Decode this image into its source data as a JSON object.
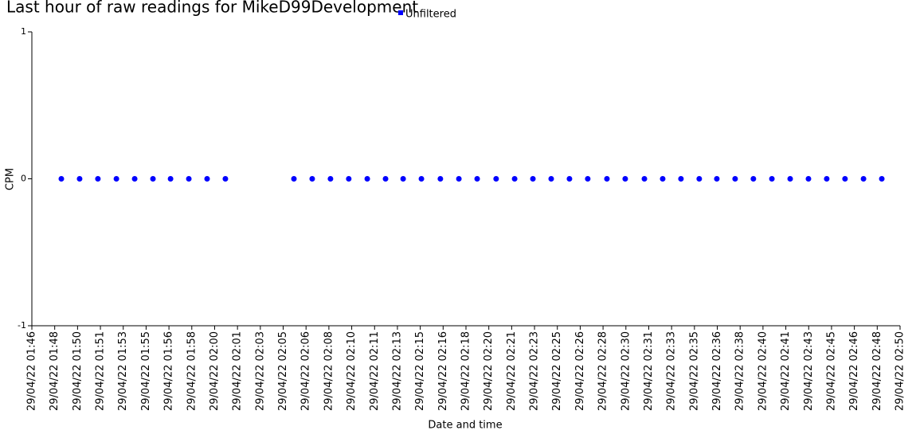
{
  "chart_data": {
    "type": "scatter",
    "title": "Last hour of raw readings for MikeD99Development",
    "x_label": "Date and time",
    "y_label": "CPM",
    "legend_position": "top",
    "xlim": [
      "29/04/22 01:46:40",
      "29/04/22 02:50:00"
    ],
    "ylim": [
      -1,
      1
    ],
    "yticks": [
      -1,
      0,
      1
    ],
    "xticks": [
      {
        "value": "29/04/22 01:46:40",
        "label": "29/04/22 01:46"
      },
      {
        "value": "29/04/22 01:48:20",
        "label": "29/04/22 01:48"
      },
      {
        "value": "29/04/22 01:50:00",
        "label": "29/04/22 01:50"
      },
      {
        "value": "29/04/22 01:51:40",
        "label": "29/04/22 01:51"
      },
      {
        "value": "29/04/22 01:53:20",
        "label": "29/04/22 01:53"
      },
      {
        "value": "29/04/22 01:55:00",
        "label": "29/04/22 01:55"
      },
      {
        "value": "29/04/22 01:56:40",
        "label": "29/04/22 01:56"
      },
      {
        "value": "29/04/22 01:58:20",
        "label": "29/04/22 01:58"
      },
      {
        "value": "29/04/22 02:00:00",
        "label": "29/04/22 02:00"
      },
      {
        "value": "29/04/22 02:01:40",
        "label": "29/04/22 02:01"
      },
      {
        "value": "29/04/22 02:03:20",
        "label": "29/04/22 02:03"
      },
      {
        "value": "29/04/22 02:05:00",
        "label": "29/04/22 02:05"
      },
      {
        "value": "29/04/22 02:06:40",
        "label": "29/04/22 02:06"
      },
      {
        "value": "29/04/22 02:08:20",
        "label": "29/04/22 02:08"
      },
      {
        "value": "29/04/22 02:10:00",
        "label": "29/04/22 02:10"
      },
      {
        "value": "29/04/22 02:11:40",
        "label": "29/04/22 02:11"
      },
      {
        "value": "29/04/22 02:13:20",
        "label": "29/04/22 02:13"
      },
      {
        "value": "29/04/22 02:15:00",
        "label": "29/04/22 02:15"
      },
      {
        "value": "29/04/22 02:16:40",
        "label": "29/04/22 02:16"
      },
      {
        "value": "29/04/22 02:18:20",
        "label": "29/04/22 02:18"
      },
      {
        "value": "29/04/22 02:20:00",
        "label": "29/04/22 02:20"
      },
      {
        "value": "29/04/22 02:21:40",
        "label": "29/04/22 02:21"
      },
      {
        "value": "29/04/22 02:23:20",
        "label": "29/04/22 02:23"
      },
      {
        "value": "29/04/22 02:25:00",
        "label": "29/04/22 02:25"
      },
      {
        "value": "29/04/22 02:26:40",
        "label": "29/04/22 02:26"
      },
      {
        "value": "29/04/22 02:28:20",
        "label": "29/04/22 02:28"
      },
      {
        "value": "29/04/22 02:30:00",
        "label": "29/04/22 02:30"
      },
      {
        "value": "29/04/22 02:31:40",
        "label": "29/04/22 02:31"
      },
      {
        "value": "29/04/22 02:33:20",
        "label": "29/04/22 02:33"
      },
      {
        "value": "29/04/22 02:35:00",
        "label": "29/04/22 02:35"
      },
      {
        "value": "29/04/22 02:36:40",
        "label": "29/04/22 02:36"
      },
      {
        "value": "29/04/22 02:38:20",
        "label": "29/04/22 02:38"
      },
      {
        "value": "29/04/22 02:40:00",
        "label": "29/04/22 02:40"
      },
      {
        "value": "29/04/22 02:41:40",
        "label": "29/04/22 02:41"
      },
      {
        "value": "29/04/22 02:43:20",
        "label": "29/04/22 02:43"
      },
      {
        "value": "29/04/22 02:45:00",
        "label": "29/04/22 02:45"
      },
      {
        "value": "29/04/22 02:46:40",
        "label": "29/04/22 02:46"
      },
      {
        "value": "29/04/22 02:48:20",
        "label": "29/04/22 02:48"
      },
      {
        "value": "29/04/22 02:50:00",
        "label": "29/04/22 02:50"
      }
    ],
    "x": [
      "29/04/22 01:48:49",
      "29/04/22 01:50:09",
      "29/04/22 01:51:29",
      "29/04/22 01:52:50",
      "29/04/22 01:54:10",
      "29/04/22 01:55:30",
      "29/04/22 01:56:47",
      "29/04/22 01:58:07",
      "29/04/22 01:59:27",
      "29/04/22 02:00:47",
      "29/04/22 02:05:47",
      "29/04/22 02:07:07",
      "29/04/22 02:08:27",
      "29/04/22 02:09:47",
      "29/04/22 02:11:08",
      "29/04/22 02:12:28",
      "29/04/22 02:13:45",
      "29/04/22 02:15:05",
      "29/04/22 02:16:28",
      "29/04/22 02:17:49",
      "29/04/22 02:19:09",
      "29/04/22 02:20:32",
      "29/04/22 02:21:53",
      "29/04/22 02:23:13",
      "29/04/22 02:24:33",
      "29/04/22 02:25:53",
      "29/04/22 02:27:13",
      "29/04/22 02:28:37",
      "29/04/22 02:29:57",
      "29/04/22 02:31:21",
      "29/04/22 02:32:41",
      "29/04/22 02:34:01",
      "29/04/22 02:35:21",
      "29/04/22 02:36:38",
      "29/04/22 02:37:58",
      "29/04/22 02:39:18",
      "29/04/22 02:40:39",
      "29/04/22 02:41:59",
      "29/04/22 02:43:19",
      "29/04/22 02:44:39",
      "29/04/22 02:45:59",
      "29/04/22 02:47:20",
      "29/04/22 02:48:40"
    ],
    "series": [
      {
        "name": "Unfiltered",
        "color": "#0000ff",
        "values": [
          0,
          0,
          0,
          0,
          0,
          0,
          0,
          0,
          0,
          0,
          0,
          0,
          0,
          0,
          0,
          0,
          0,
          0,
          0,
          0,
          0,
          0,
          0,
          0,
          0,
          0,
          0,
          0,
          0,
          0,
          0,
          0,
          0,
          0,
          0,
          0,
          0,
          0,
          0,
          0,
          0,
          0,
          0
        ]
      }
    ]
  }
}
